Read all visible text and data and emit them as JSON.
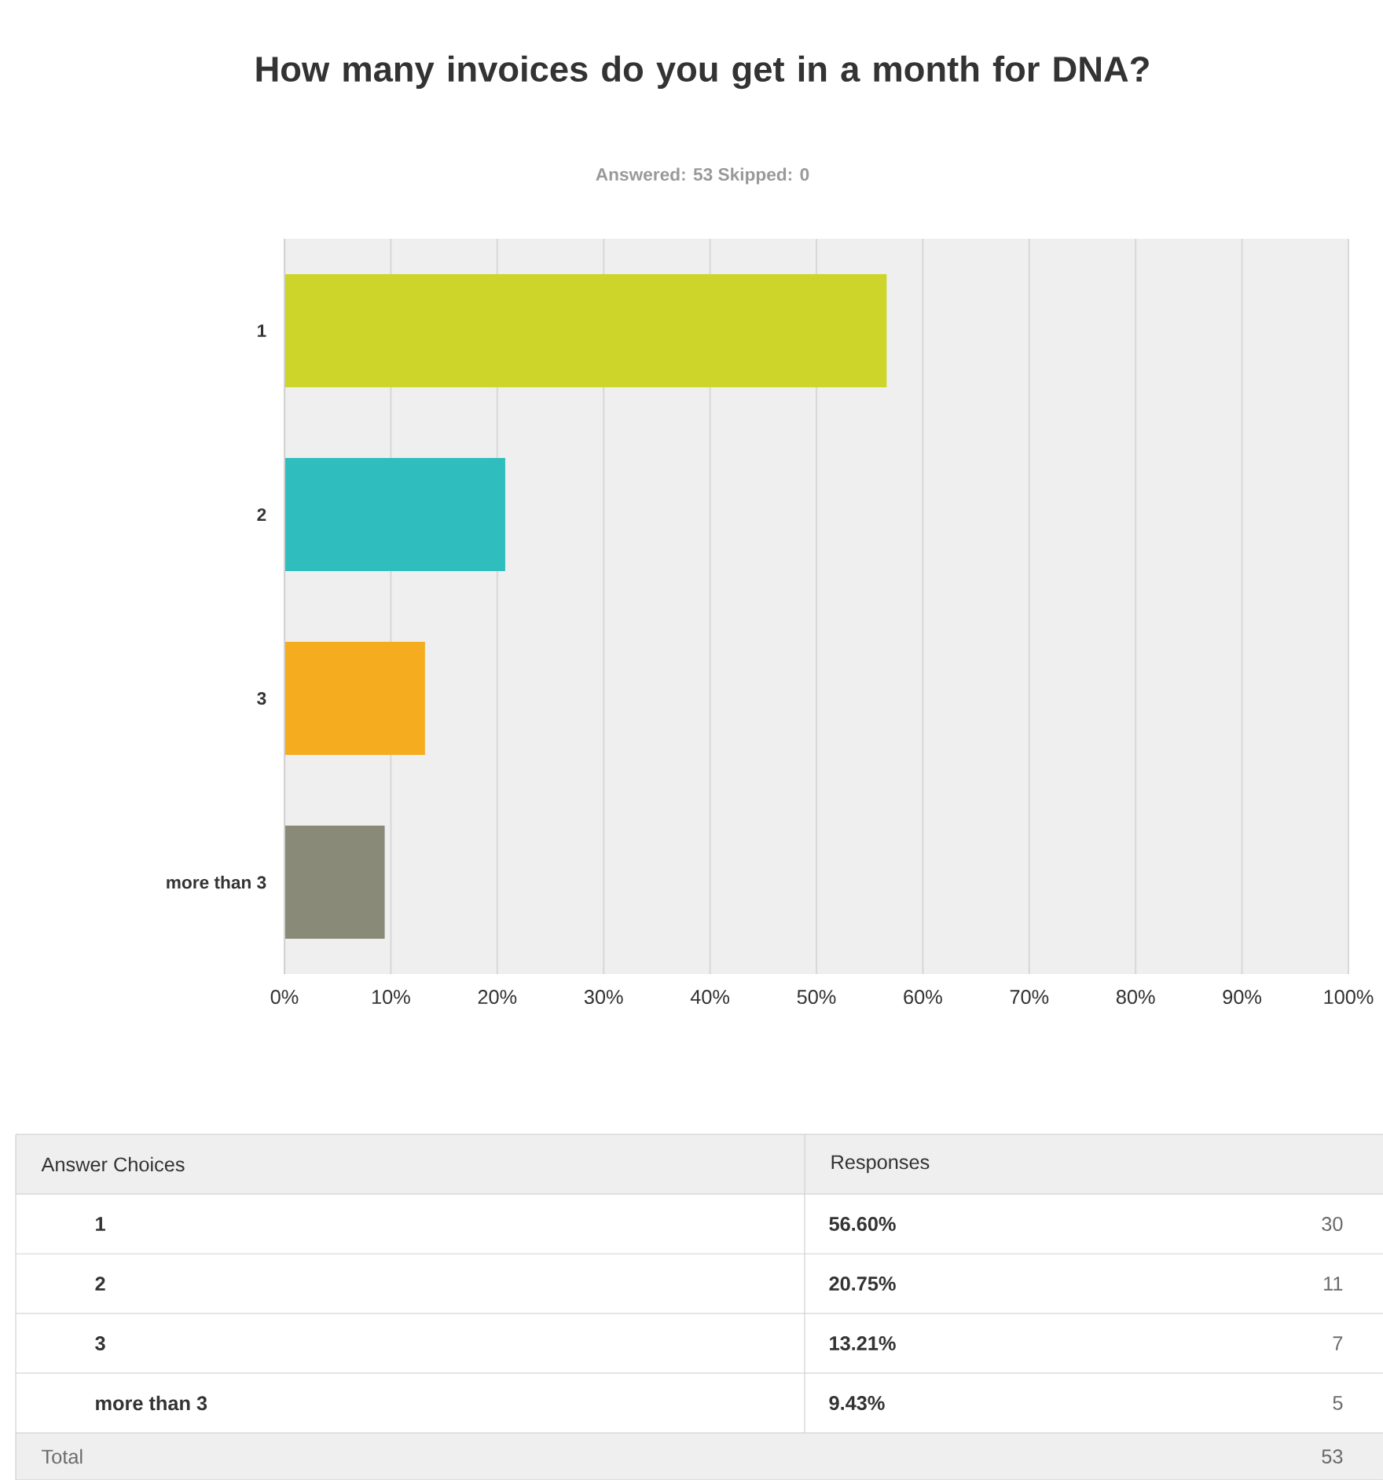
{
  "chart_data": {
    "type": "bar",
    "orientation": "horizontal",
    "title": "How many invoices do you get in a month for DNA?",
    "subtitle": "Answered: 53    Skipped: 0",
    "categories": [
      "1",
      "2",
      "3",
      "more than 3"
    ],
    "values": [
      56.6,
      20.75,
      13.21,
      9.43
    ],
    "colors": [
      "#cdd52a",
      "#30bdbd",
      "#f5ad1f",
      "#898a78"
    ],
    "xlim": [
      0,
      100
    ],
    "xticks": [
      {
        "value": 0,
        "label": "0%"
      },
      {
        "value": 10,
        "label": "10%"
      },
      {
        "value": 20,
        "label": "20%"
      },
      {
        "value": 30,
        "label": "30%"
      },
      {
        "value": 40,
        "label": "40%"
      },
      {
        "value": 50,
        "label": "50%"
      },
      {
        "value": 60,
        "label": "60%"
      },
      {
        "value": 70,
        "label": "70%"
      },
      {
        "value": 80,
        "label": "80%"
      },
      {
        "value": 90,
        "label": "90%"
      },
      {
        "value": 100,
        "label": "100%"
      }
    ],
    "grid": "x",
    "annotations": [
      "Answer Choices",
      "Responses",
      "Total",
      "53",
      "30",
      "11",
      "7",
      "5",
      "56.60%",
      "20.75%",
      "13.21%",
      "9.43%"
    ]
  }
}
